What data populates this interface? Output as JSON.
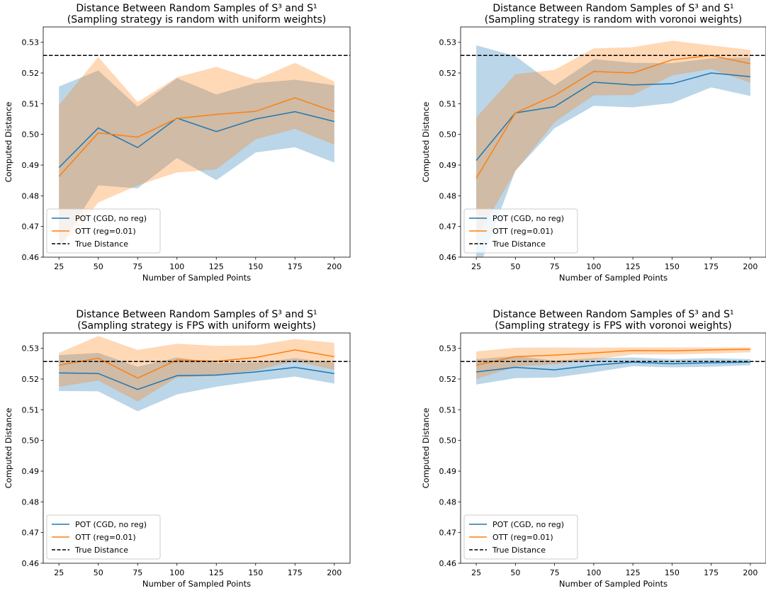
{
  "colors": {
    "pot": "#1f77b4",
    "pot_band": "#1f77b4",
    "ott": "#ff7f0e",
    "ott_band": "#ff7f0e",
    "true_distance": "#000000"
  },
  "chart_data": [
    {
      "type": "line",
      "title": "Distance Between Random Samples of S³ and S¹",
      "subtitle": "(Sampling strategy is random with uniform weights)",
      "xlabel": "Number of Sampled Points",
      "ylabel": "Computed Distance",
      "x": [
        25,
        50,
        75,
        100,
        125,
        150,
        175,
        200
      ],
      "xticks": [
        25,
        50,
        75,
        100,
        125,
        150,
        175,
        200
      ],
      "xlim": [
        15,
        210
      ],
      "ylim": [
        0.46,
        0.535
      ],
      "yticks": [
        0.46,
        0.47,
        0.48,
        0.49,
        0.5,
        0.51,
        0.52,
        0.53
      ],
      "legend_position": "lower-left",
      "true_distance": 0.5257,
      "series": [
        {
          "name": "POT (CGD, no reg)",
          "color": "#1f77b4",
          "values": [
            0.4892,
            0.5021,
            0.4957,
            0.5053,
            0.5009,
            0.505,
            0.5074,
            0.5042
          ],
          "upper": [
            0.5156,
            0.5208,
            0.509,
            0.5183,
            0.513,
            0.5167,
            0.5178,
            0.516
          ],
          "lower": [
            0.4628,
            0.4834,
            0.4824,
            0.4923,
            0.4851,
            0.4941,
            0.4958,
            0.4908
          ]
        },
        {
          "name": "OTT (reg=0.01)",
          "color": "#ff7f0e",
          "values": [
            0.4863,
            0.5005,
            0.4991,
            0.5052,
            0.5065,
            0.5075,
            0.5119,
            0.5074
          ],
          "upper": [
            0.5095,
            0.5252,
            0.5105,
            0.5186,
            0.522,
            0.5178,
            0.5233,
            0.5172
          ],
          "lower": [
            0.4631,
            0.4778,
            0.4834,
            0.4876,
            0.4886,
            0.4984,
            0.5018,
            0.4966
          ]
        }
      ],
      "reference_line": {
        "name": "True Distance",
        "value": 0.5257
      }
    },
    {
      "type": "line",
      "title": "Distance Between Random Samples of S³ and S¹",
      "subtitle": "(Sampling strategy is random with voronoi weights)",
      "xlabel": "Number of Sampled Points",
      "ylabel": "Computed Distance",
      "x": [
        25,
        50,
        75,
        100,
        125,
        150,
        175,
        200
      ],
      "xticks": [
        25,
        50,
        75,
        100,
        125,
        150,
        175,
        200
      ],
      "xlim": [
        15,
        210
      ],
      "ylim": [
        0.46,
        0.535
      ],
      "yticks": [
        0.46,
        0.47,
        0.48,
        0.49,
        0.5,
        0.51,
        0.52,
        0.53
      ],
      "legend_position": "lower-left",
      "true_distance": 0.5257,
      "series": [
        {
          "name": "POT (CGD, no reg)",
          "color": "#1f77b4",
          "values": [
            0.4915,
            0.507,
            0.509,
            0.517,
            0.5161,
            0.5165,
            0.52,
            0.5188
          ],
          "upper": [
            0.529,
            0.5255,
            0.516,
            0.5245,
            0.5233,
            0.5232,
            0.5248,
            0.525
          ],
          "lower": [
            0.454,
            0.4882,
            0.502,
            0.5093,
            0.5088,
            0.5102,
            0.5153,
            0.5125
          ]
        },
        {
          "name": "OTT (reg=0.01)",
          "color": "#ff7f0e",
          "values": [
            0.4857,
            0.507,
            0.5127,
            0.5205,
            0.52,
            0.5243,
            0.5257,
            0.523
          ],
          "upper": [
            0.5055,
            0.5196,
            0.521,
            0.528,
            0.5284,
            0.5305,
            0.529,
            0.5275
          ],
          "lower": [
            0.466,
            0.488,
            0.504,
            0.5127,
            0.5128,
            0.5192,
            0.5213,
            0.5168
          ]
        }
      ],
      "reference_line": {
        "name": "True Distance",
        "value": 0.5257
      }
    },
    {
      "type": "line",
      "title": "Distance Between Random Samples of S³ and S¹",
      "subtitle": "(Sampling strategy is FPS with uniform weights)",
      "xlabel": "Number of Sampled Points",
      "ylabel": "Computed Distance",
      "x": [
        25,
        50,
        75,
        100,
        125,
        150,
        175,
        200
      ],
      "xticks": [
        25,
        50,
        75,
        100,
        125,
        150,
        175,
        200
      ],
      "xlim": [
        15,
        210
      ],
      "ylim": [
        0.46,
        0.535
      ],
      "yticks": [
        0.46,
        0.47,
        0.48,
        0.49,
        0.5,
        0.51,
        0.52,
        0.53
      ],
      "legend_position": "lower-left",
      "true_distance": 0.5257,
      "series": [
        {
          "name": "POT (CGD, no reg)",
          "color": "#1f77b4",
          "values": [
            0.522,
            0.5218,
            0.5166,
            0.5211,
            0.5213,
            0.5223,
            0.5238,
            0.5218
          ],
          "upper": [
            0.5278,
            0.5285,
            0.524,
            0.527,
            0.5253,
            0.5253,
            0.5268,
            0.5253
          ],
          "lower": [
            0.5161,
            0.516,
            0.5095,
            0.515,
            0.5175,
            0.5193,
            0.5208,
            0.5185
          ]
        },
        {
          "name": "OTT (reg=0.01)",
          "color": "#ff7f0e",
          "values": [
            0.5245,
            0.5268,
            0.5203,
            0.5262,
            0.5258,
            0.527,
            0.5295,
            0.5273
          ],
          "upper": [
            0.5285,
            0.534,
            0.5295,
            0.5315,
            0.5308,
            0.531,
            0.533,
            0.5318
          ],
          "lower": [
            0.5175,
            0.5195,
            0.5127,
            0.5205,
            0.521,
            0.5228,
            0.5258,
            0.523
          ]
        }
      ],
      "reference_line": {
        "name": "True Distance",
        "value": 0.5257
      }
    },
    {
      "type": "line",
      "title": "Distance Between Random Samples of S³ and S¹",
      "subtitle": "(Sampling strategy is FPS with voronoi weights)",
      "xlabel": "Number of Sampled Points",
      "ylabel": "Computed Distance",
      "x": [
        25,
        50,
        75,
        100,
        125,
        150,
        175,
        200
      ],
      "xticks": [
        25,
        50,
        75,
        100,
        125,
        150,
        175,
        200
      ],
      "xlim": [
        15,
        210
      ],
      "ylim": [
        0.46,
        0.535
      ],
      "yticks": [
        0.46,
        0.47,
        0.48,
        0.49,
        0.5,
        0.51,
        0.52,
        0.53
      ],
      "legend_position": "lower-left",
      "true_distance": 0.5257,
      "series": [
        {
          "name": "POT (CGD, no reg)",
          "color": "#1f77b4",
          "values": [
            0.5223,
            0.5238,
            0.523,
            0.5245,
            0.5255,
            0.525,
            0.5253,
            0.5255
          ],
          "upper": [
            0.5265,
            0.5275,
            0.526,
            0.5268,
            0.527,
            0.5265,
            0.5268,
            0.5265
          ],
          "lower": [
            0.5182,
            0.5203,
            0.5205,
            0.5222,
            0.5242,
            0.5238,
            0.524,
            0.5245
          ]
        },
        {
          "name": "OTT (reg=0.01)",
          "color": "#ff7f0e",
          "values": [
            0.5245,
            0.5273,
            0.5278,
            0.5285,
            0.5293,
            0.5292,
            0.5295,
            0.5297
          ],
          "upper": [
            0.529,
            0.5302,
            0.5303,
            0.5302,
            0.5303,
            0.5303,
            0.5303,
            0.5303
          ],
          "lower": [
            0.52,
            0.524,
            0.5248,
            0.5263,
            0.528,
            0.528,
            0.5283,
            0.5287
          ]
        }
      ],
      "reference_line": {
        "name": "True Distance",
        "value": 0.5257
      }
    }
  ]
}
